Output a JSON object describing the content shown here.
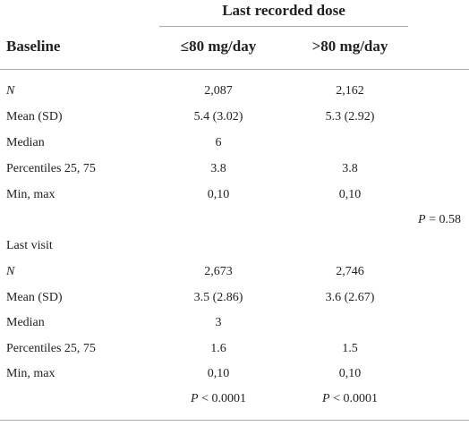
{
  "table": {
    "spanning_header": "Last recorded dose",
    "baseline_header": "Baseline",
    "col_headers": [
      "≤80 mg/day",
      ">80 mg/day"
    ],
    "baseline": {
      "rows": [
        {
          "label": "N",
          "v1": "2,087",
          "v2": "2,162"
        },
        {
          "label": "Mean (SD)",
          "v1": "5.4 (3.02)",
          "v2": "5.3 (2.92)"
        },
        {
          "label": "Median",
          "v1": "6",
          "v2": ""
        },
        {
          "label": "Percentiles 25, 75",
          "v1": "3.8",
          "v2": "3.8"
        },
        {
          "label": "Min, max",
          "v1": "0,10",
          "v2": "0,10"
        }
      ],
      "p_value": {
        "p": "P",
        "rest": " = 0.58"
      }
    },
    "last_visit": {
      "label": "Last visit",
      "rows": [
        {
          "label": "N",
          "v1": "2,673",
          "v2": "2,746"
        },
        {
          "label": "Mean (SD)",
          "v1": "3.5 (2.86)",
          "v2": "3.6 (2.67)"
        },
        {
          "label": "Median",
          "v1": "3",
          "v2": ""
        },
        {
          "label": "Percentiles 25, 75",
          "v1": "1.6",
          "v2": "1.5"
        },
        {
          "label": "Min, max",
          "v1": "0,10",
          "v2": "0,10"
        }
      ],
      "p_values": [
        {
          "p": "P",
          "rest": " < 0.0001"
        },
        {
          "p": "P",
          "rest": " < 0.0001"
        }
      ]
    }
  }
}
